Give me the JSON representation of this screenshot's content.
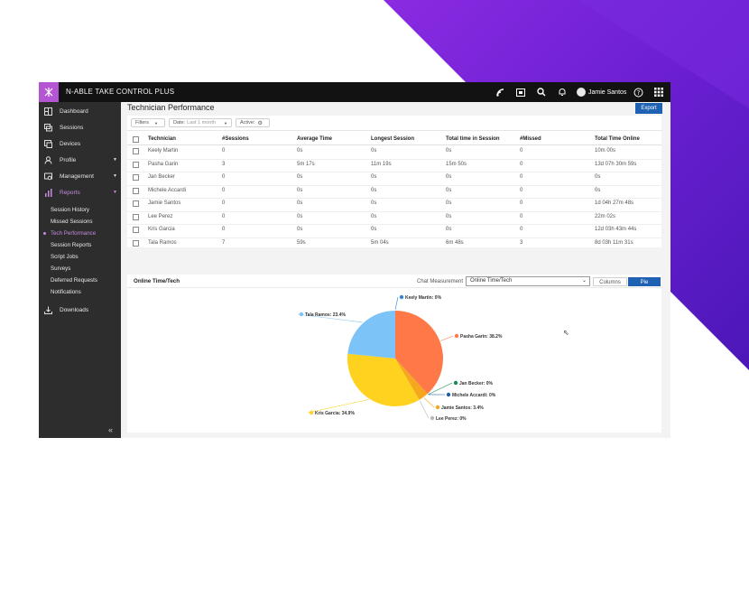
{
  "colors": {
    "brand_purple": "#6a1fd1",
    "accent_blue": "#1f62b3",
    "sidebar_bg": "#2d2d2d",
    "topbar_bg": "#121212",
    "active_nav": "#b455d4"
  },
  "topbar": {
    "brand": "N-ABLE TAKE CONTROL PLUS",
    "icons": [
      "signal-icon",
      "calendar-icon",
      "search-icon",
      "bell-icon",
      "help-icon",
      "apps-grid-icon"
    ],
    "user_name": "Jamie Santos"
  },
  "sidebar": {
    "items": [
      {
        "label": "Dashboard",
        "icon": "dashboard-icon"
      },
      {
        "label": "Sessions",
        "icon": "sessions-icon"
      },
      {
        "label": "Devices",
        "icon": "devices-icon"
      },
      {
        "label": "Profile",
        "icon": "profile-icon"
      },
      {
        "label": "Management",
        "icon": "management-icon"
      },
      {
        "label": "Reports",
        "icon": "reports-icon"
      },
      {
        "label": "Downloads",
        "icon": "download-icon"
      }
    ],
    "report_subitems": [
      "Session History",
      "Missed Sessions",
      "Tech Performance",
      "Session Reports",
      "Script Jobs",
      "Surveys",
      "Deferred Requests",
      "Notifications"
    ],
    "collapse_glyph": "«"
  },
  "page": {
    "title": "Technician Performance",
    "export_label": "Export",
    "filters_label": "Filters",
    "date_label": "Date:",
    "date_value": "Last 1 month",
    "active_label": "Active:"
  },
  "table": {
    "columns": [
      "Technician",
      "#Sessions",
      "Average Time",
      "Longest Session",
      "Total time in Session",
      "#Missed",
      "Total Time Online"
    ],
    "rows": [
      [
        "Keely Martin",
        "0",
        "0s",
        "0s",
        "0s",
        "0",
        "10m 00s"
      ],
      [
        "Pasha Garin",
        "3",
        "5m 17s",
        "11m 19s",
        "15m 50s",
        "0",
        "13d 07h 30m 59s"
      ],
      [
        "Jan Becker",
        "0",
        "0s",
        "0s",
        "0s",
        "0",
        "0s"
      ],
      [
        "Michele Accardi",
        "0",
        "0s",
        "0s",
        "0s",
        "0",
        "0s"
      ],
      [
        "Jamie Santos",
        "0",
        "0s",
        "0s",
        "0s",
        "0",
        "1d 04h 27m 48s"
      ],
      [
        "Lee Perez",
        "0",
        "0s",
        "0s",
        "0s",
        "0",
        "22m 02s"
      ],
      [
        "Kris Garcia",
        "0",
        "0s",
        "0s",
        "0s",
        "0",
        "12d 03h 43m 44s"
      ],
      [
        "Tala Ramos",
        "7",
        "59s",
        "5m 04s",
        "6m 48s",
        "3",
        "8d 03h 11m 31s"
      ]
    ]
  },
  "chart_panel": {
    "title": "Online Time/Tech",
    "measurement_label": "Chat Measurement",
    "measurement_value": "Online Time/Tech",
    "columns_label": "Columns",
    "pie_label": "Pie"
  },
  "chart_data": {
    "type": "pie",
    "title": "Online Time/Tech",
    "slices": [
      {
        "name": "Keely Martin",
        "value": 0,
        "label": "Keely Martin: 0%",
        "color": "#2f86d6"
      },
      {
        "name": "Pasha Garin",
        "value": 38.2,
        "label": "Pasha Garin: 38.2%",
        "color": "#ff7847"
      },
      {
        "name": "Jan Becker",
        "value": 0,
        "label": "Jan Becker: 0%",
        "color": "#1a8a52"
      },
      {
        "name": "Michele Accardi",
        "value": 0,
        "label": "Michele Accardi: 0%",
        "color": "#1c5fa8"
      },
      {
        "name": "Jamie Santos",
        "value": 3.4,
        "label": "Jamie Santos: 3.4%",
        "color": "#f5a81e"
      },
      {
        "name": "Lee Perez",
        "value": 0,
        "label": "Lee Perez: 0%",
        "color": "#b8b8b8"
      },
      {
        "name": "Kris Garcia",
        "value": 34.9,
        "label": "Kris Garcia: 34.9%",
        "color": "#ffd21f"
      },
      {
        "name": "Tala Ramos",
        "value": 23.4,
        "label": "Tala Ramos: 23.4%",
        "color": "#7cc4f8"
      }
    ]
  }
}
